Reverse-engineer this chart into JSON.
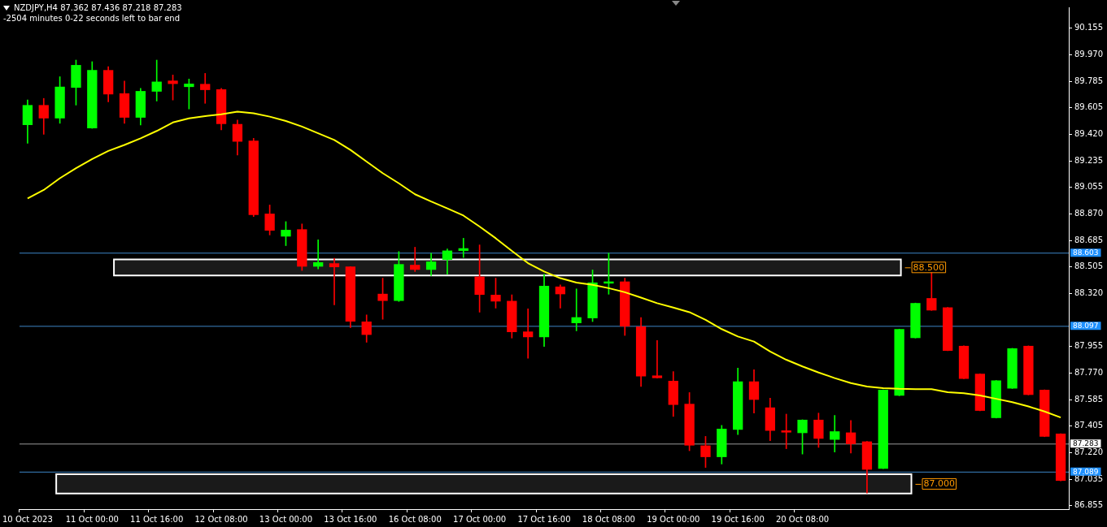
{
  "chart_data": {
    "type": "candlestick",
    "title": "NZDJPY,H4  87.362 87.436 87.218 87.283",
    "subtitle": "-2504 minutes 0-22 seconds left to bar end",
    "categories": [
      "10 Oct 2023",
      null,
      null,
      null,
      "11 Oct 00:00",
      null,
      null,
      null,
      "11 Oct 16:00",
      null,
      null,
      null,
      "12 Oct 08:00",
      null,
      null,
      null,
      "13 Oct 00:00",
      null,
      null,
      null,
      "13 Oct 16:00",
      null,
      null,
      null,
      "16 Oct 08:00",
      null,
      null,
      null,
      "17 Oct 00:00",
      null,
      null,
      null,
      "17 Oct 16:00",
      null,
      null,
      null,
      "18 Oct 08:00",
      null,
      null,
      null,
      "19 Oct 00:00",
      null,
      null,
      null,
      "19 Oct 16:00",
      null,
      null,
      null,
      "20 Oct 08:00",
      null,
      null,
      null,
      null,
      null,
      null,
      null,
      null,
      null,
      null,
      null,
      null,
      null,
      null,
      null,
      null
    ],
    "ohlc": [
      [
        89.486,
        89.659,
        89.36,
        89.624
      ],
      [
        89.624,
        89.67,
        89.422,
        89.532
      ],
      [
        89.532,
        89.82,
        89.498,
        89.751
      ],
      [
        89.744,
        89.935,
        89.624,
        89.901
      ],
      [
        89.463,
        89.924,
        89.463,
        89.866
      ],
      [
        89.866,
        89.889,
        89.647,
        89.698
      ],
      [
        89.705,
        89.79,
        89.498,
        89.537
      ],
      [
        89.537,
        89.74,
        89.486,
        89.721
      ],
      [
        89.717,
        89.935,
        89.652,
        89.786
      ],
      [
        89.793,
        89.832,
        89.659,
        89.77
      ],
      [
        89.749,
        89.804,
        89.597,
        89.772
      ],
      [
        89.77,
        89.843,
        89.636,
        89.728
      ],
      [
        89.733,
        89.74,
        89.452,
        89.493
      ],
      [
        89.493,
        89.521,
        89.279,
        89.371
      ],
      [
        89.378,
        89.394,
        88.853,
        88.864
      ],
      [
        88.873,
        88.933,
        88.726,
        88.756
      ],
      [
        88.715,
        88.818,
        88.652,
        88.761
      ],
      [
        88.765,
        88.802,
        88.48,
        88.507
      ],
      [
        88.507,
        88.692,
        88.491,
        88.537
      ],
      [
        88.53,
        88.565,
        88.242,
        88.503
      ],
      [
        88.507,
        88.507,
        88.086,
        88.127
      ],
      [
        88.127,
        88.173,
        87.984,
        88.035
      ],
      [
        88.319,
        88.427,
        88.143,
        88.27
      ],
      [
        88.27,
        88.611,
        88.266,
        88.524
      ],
      [
        88.519,
        88.641,
        88.473,
        88.485
      ],
      [
        88.485,
        88.6,
        88.445,
        88.542
      ],
      [
        88.554,
        88.629,
        88.454,
        88.618
      ],
      [
        88.616,
        88.703,
        88.57,
        88.634
      ],
      [
        88.438,
        88.657,
        88.192,
        88.312
      ],
      [
        88.312,
        88.427,
        88.22,
        88.266
      ],
      [
        88.27,
        88.312,
        88.013,
        88.054
      ],
      [
        88.058,
        88.215,
        87.874,
        88.019
      ],
      [
        88.019,
        88.454,
        87.955,
        88.374
      ],
      [
        88.369,
        88.381,
        88.22,
        88.316
      ],
      [
        88.116,
        88.353,
        88.063,
        88.157
      ],
      [
        88.15,
        88.484,
        88.127,
        88.397
      ],
      [
        88.39,
        88.6,
        88.316,
        88.404
      ],
      [
        88.404,
        88.427,
        88.031,
        88.093
      ],
      [
        88.093,
        88.155,
        87.678,
        87.748
      ],
      [
        87.754,
        87.996,
        87.736,
        87.736
      ],
      [
        87.717,
        87.781,
        87.471,
        87.551
      ],
      [
        87.558,
        87.636,
        87.234,
        87.27
      ],
      [
        87.27,
        87.333,
        87.118,
        87.19
      ],
      [
        87.19,
        87.409,
        87.142,
        87.386
      ],
      [
        87.379,
        87.805,
        87.345,
        87.713
      ],
      [
        87.713,
        87.794,
        87.494,
        87.586
      ],
      [
        87.533,
        87.598,
        87.303,
        87.372
      ],
      [
        87.374,
        87.487,
        87.248,
        87.36
      ],
      [
        87.356,
        87.448,
        87.211,
        87.448
      ],
      [
        87.448,
        87.494,
        87.257,
        87.317
      ],
      [
        87.31,
        87.478,
        87.225,
        87.368
      ],
      [
        87.36,
        87.443,
        87.218,
        87.28
      ],
      [
        87.298,
        87.298,
        86.942,
        87.103
      ],
      [
        87.11,
        87.655,
        87.11,
        87.655
      ],
      [
        87.614,
        88.075,
        87.614,
        88.075
      ],
      [
        88.013,
        88.255,
        88.013,
        88.255
      ],
      [
        88.289,
        88.466,
        88.204,
        88.204
      ],
      [
        88.225,
        88.225,
        87.925,
        87.925
      ],
      [
        87.959,
        87.959,
        87.731,
        87.731
      ],
      [
        87.766,
        87.766,
        87.51,
        87.51
      ],
      [
        87.46,
        87.72,
        87.46,
        87.72
      ],
      [
        87.664,
        87.942,
        87.664,
        87.942
      ],
      [
        87.959,
        87.959,
        87.62,
        87.62
      ],
      [
        87.655,
        87.655,
        87.331,
        87.331
      ],
      [
        87.352,
        87.352,
        87.026,
        87.026
      ]
    ],
    "colors": [
      "#00ff00",
      "#ff0000",
      "#00ff00",
      "#00ff00",
      "#00ff00",
      "#ff0000",
      "#ff0000",
      "#00ff00",
      "#00ff00",
      "#ff0000",
      "#00ff00",
      "#ff0000",
      "#ff0000",
      "#ff0000",
      "#ff0000",
      "#ff0000",
      "#00ff00",
      "#ff0000",
      "#00ff00",
      "#ff0000",
      "#ff0000",
      "#ff0000",
      "#ff0000",
      "#00ff00",
      "#ff0000",
      "#00ff00",
      "#00ff00",
      "#00ff00",
      "#ff0000",
      "#ff0000",
      "#ff0000",
      "#ff0000",
      "#00ff00",
      "#ff0000",
      "#00ff00",
      "#00ff00",
      "#00ff00",
      "#ff0000",
      "#ff0000",
      "#ff0000",
      "#ff0000",
      "#ff0000",
      "#ff0000",
      "#00ff00",
      "#00ff00",
      "#ff0000",
      "#ff0000",
      "#ff0000",
      "#00ff00",
      "#ff0000",
      "#00ff00",
      "#ff0000",
      "#ff0000",
      "#00ff00",
      "#00ff00",
      "#00ff00",
      "#ff0000",
      "#ff0000",
      "#ff0000",
      "#ff0000",
      "#00ff00",
      "#00ff00",
      "#ff0000",
      "#ff0000",
      "#ff0000"
    ],
    "series": [
      {
        "type": "line",
        "color": "#ffff00",
        "values": [
          88.979,
          89.037,
          89.118,
          89.187,
          89.251,
          89.307,
          89.348,
          89.394,
          89.445,
          89.504,
          89.532,
          89.548,
          89.56,
          89.578,
          89.567,
          89.544,
          89.514,
          89.475,
          89.429,
          89.383,
          89.314,
          89.233,
          89.153,
          89.083,
          89.007,
          88.957,
          88.91,
          88.86,
          88.784,
          88.703,
          88.616,
          88.531,
          88.473,
          88.427,
          88.397,
          88.381,
          88.358,
          88.33,
          88.293,
          88.254,
          88.224,
          88.192,
          88.139,
          88.075,
          88.024,
          87.989,
          87.92,
          87.863,
          87.817,
          87.775,
          87.736,
          87.702,
          87.678,
          87.667,
          87.662,
          87.66,
          87.66,
          87.639,
          87.632,
          87.616,
          87.593,
          87.57,
          87.54,
          87.505,
          87.464
        ]
      }
    ],
    "marker": "none",
    "ylim": [
      86.83,
      90.3
    ],
    "yticks": [
      {
        "value": 90.155,
        "label": "90.155"
      },
      {
        "value": 89.97,
        "label": "89.970"
      },
      {
        "value": 89.785,
        "label": "89.785"
      },
      {
        "value": 89.605,
        "label": "89.605"
      },
      {
        "value": 89.42,
        "label": "89.420"
      },
      {
        "value": 89.235,
        "label": "89.235"
      },
      {
        "value": 89.055,
        "label": "89.055"
      },
      {
        "value": 88.87,
        "label": "88.870"
      },
      {
        "value": 88.685,
        "label": "88.685"
      },
      {
        "value": 88.505,
        "label": "88.505"
      },
      {
        "value": 88.32,
        "label": "88.320"
      },
      {
        "value": 87.955,
        "label": "87.955"
      },
      {
        "value": 87.77,
        "label": "87.770"
      },
      {
        "value": 87.585,
        "label": "87.585"
      },
      {
        "value": 87.405,
        "label": "87.405"
      },
      {
        "value": 87.22,
        "label": "87.220"
      },
      {
        "value": 87.035,
        "label": "87.035"
      },
      {
        "value": 86.855,
        "label": "86.855"
      }
    ],
    "ref_lines": [
      {
        "axis": "y",
        "value": 88.603,
        "label": "88.603",
        "color": "#3d85c6"
      },
      {
        "axis": "y",
        "value": 88.097,
        "label": "88.097",
        "color": "#3d85c6"
      },
      {
        "axis": "y",
        "value": 87.283,
        "label": "87.283",
        "color": "#9a9a9a"
      },
      {
        "axis": "y",
        "value": 87.089,
        "label": "87.089",
        "color": "#3d85c6"
      }
    ],
    "bands": [
      {
        "axis": "y",
        "from": 88.446,
        "to": 88.557,
        "label": "88.500",
        "color": "#ffffff"
      },
      {
        "axis": "y",
        "from": 86.938,
        "to": 87.071,
        "label": "87.000",
        "color": "#ffffff"
      }
    ]
  }
}
